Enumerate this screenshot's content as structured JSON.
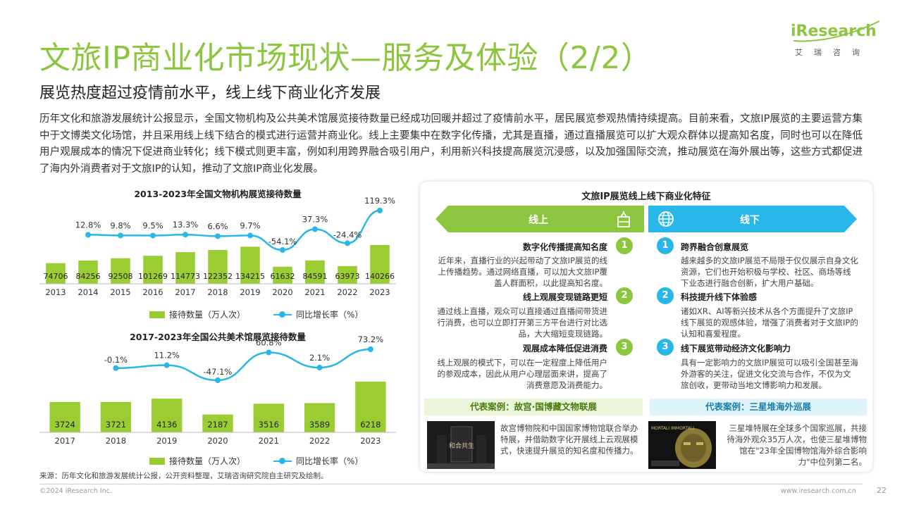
{
  "header": {
    "title": "文旅IP商业化市场现状—服务及体验（2/2）",
    "subtitle": "展览热度超过疫情前水平，线上线下商业化齐发展",
    "intro": "历年文化和旅游发展统计公报显示，全国文物机构及公共美术馆展览接待数量已经成功回暖并超过了疫情前水平，居民展览参观热情持续提高。目前来看，文旅IP展览的主要运营方集中于文博类文化场馆，并且采用线上线下结合的模式进行运营并商业化。线上主要集中在数字化传播，尤其是直播，通过直播展览可以扩大观众群体以提高知名度，同时也可以在降低用户观展成本的情况下促进商业转化；线下模式则更丰富，例如利用跨界融合吸引用户，利用新兴科技提高展览沉浸感，以及加强国际交流，推动展览在海外展出等，这些方式都促进了海内外消费者对于文旅IP的认知，推动了文旅IP商业化发展。"
  },
  "logo": {
    "brand": "iResearch",
    "brand_cn": "艾瑞咨询"
  },
  "colors": {
    "accent_green": "#8cc63f",
    "bar_green": "#9acd32",
    "line_blue": "#29b6e8"
  },
  "chart_data": [
    {
      "type": "bar",
      "title": "2013-2023年全国文物机构展览接待数量",
      "categories": [
        "2013",
        "2014",
        "2015",
        "2016",
        "2017",
        "2018",
        "2019",
        "2020",
        "2021",
        "2022",
        "2023"
      ],
      "series": [
        {
          "name": "接待数量（万人次）",
          "type": "bar",
          "values": [
            74706,
            84256,
            92508,
            101269,
            114773,
            122352,
            134215,
            61632,
            84591,
            63973,
            140266
          ]
        },
        {
          "name": "同比增长率（%）",
          "type": "line",
          "values": [
            null,
            12.8,
            9.8,
            9.5,
            13.3,
            6.6,
            9.7,
            -54.1,
            37.3,
            -24.4,
            119.3
          ]
        }
      ],
      "value_labels": [
        "74706",
        "84256",
        "92508",
        "101269",
        "114773",
        "122352",
        "134215",
        "61632",
        "84591",
        "63973",
        "140266"
      ],
      "rate_labels": [
        "",
        "12.8%",
        "9.8%",
        "9.5%",
        "13.3%",
        "6.6%",
        "9.7%",
        "-54.1%",
        "37.3%",
        "-24.4%",
        "119.3%"
      ],
      "legend": {
        "bar": "接待数量（万人次）",
        "line": "同比增长率（%）"
      },
      "legend_position": "bottom"
    },
    {
      "type": "bar",
      "title": "2017-2023年全国公共美术馆展览接待数量",
      "categories": [
        "2017",
        "2018",
        "2019",
        "2020",
        "2021",
        "2022",
        "2023"
      ],
      "series": [
        {
          "name": "接待数量（万人次）",
          "type": "bar",
          "values": [
            3724,
            3721,
            4136,
            2187,
            3516,
            3589,
            6218
          ]
        },
        {
          "name": "同比增长率（%）",
          "type": "line",
          "values": [
            null,
            -0.1,
            11.2,
            -47.1,
            60.8,
            2.1,
            73.2
          ]
        }
      ],
      "value_labels": [
        "3724",
        "3721",
        "4136",
        "2187",
        "3516",
        "3589",
        "6218"
      ],
      "rate_labels": [
        "",
        "-0.1%",
        "11.2%",
        "-47.1%",
        "60.8%",
        "2.1%",
        "73.2%"
      ],
      "legend": {
        "bar": "接待数量（万人次）",
        "line": "同比增长率（%）"
      },
      "legend_position": "bottom"
    }
  ],
  "panel": {
    "title": "文旅IP展览线上线下商业化特征",
    "online_label": "线上",
    "offline_label": "线下",
    "online": [
      {
        "num": "1",
        "title": "数字化传播提高知名度",
        "text": "近年来，直播行业的兴起带动了文旅IP展览的线上传播趋势。通过网络直播，可以加大文旅IP覆盖人群面积，以此提高知名度。"
      },
      {
        "num": "2",
        "title": "线上观展变现链路更短",
        "text": "通过线上直播，观众可以直接通过直播间带货进行消费，也可以立即打开第三方平台进行对比选品，大大缩短变现链路。"
      },
      {
        "num": "3",
        "title": "观展成本降低促进消费",
        "text": "线上观展的模式下，可以在一定程度上降低用户的参观成本，因此从用户心理层面来讲，提高了消费意愿及消费能力。"
      }
    ],
    "offline": [
      {
        "num": "1",
        "title": "跨界融合创意展览",
        "text": "越来越多的文旅IP展览不局限于仅仅展示自身文化资源，它们也开始积极与学校、社区、商场等线下业态进行融合创新，扩大用户基础。"
      },
      {
        "num": "2",
        "title": "科技提升线下体验感",
        "text": "诸如XR、AI等新兴技术从各个方面提升了文旅IP线下展览的观感体验，增强了消费者对于文旅IP的认知和喜爱程度。"
      },
      {
        "num": "3",
        "title": "线下展览带动经济文化影响力",
        "text": "具有一定影响力的文旅IP展览可以吸引全国甚至海外游客的关注，促进文化交流与合作，不仅为文旅创收，更带动当地文博影响力和发展。"
      }
    ],
    "case_left": {
      "title": "代表案例：故宫·国博藏文物联展",
      "text": "故宫博物院和中国国家博物馆联合举办特展，并借助数字化开展线上云观展模式，快速提升展览的知名度和传播力。",
      "image_text": "和合共生"
    },
    "case_right": {
      "title": "代表案例：三星堆海外巡展",
      "text": "三星堆特展在全球多个国家巡展，共接待海外观众35万人次，也使三星堆博物馆在\"23年全国博物馆海外综合影响力\"中位列第二名。",
      "image_text": "MORTALI IMMORTALI"
    }
  },
  "footer": {
    "source": "来源：历年文化和旅游发展统计公报，公开资料整理，艾瑞咨询研究院自主研究及绘制。",
    "copyright": "©2024 iResearch Inc.",
    "website": "www.iresearch.com.cn",
    "page": "22"
  }
}
